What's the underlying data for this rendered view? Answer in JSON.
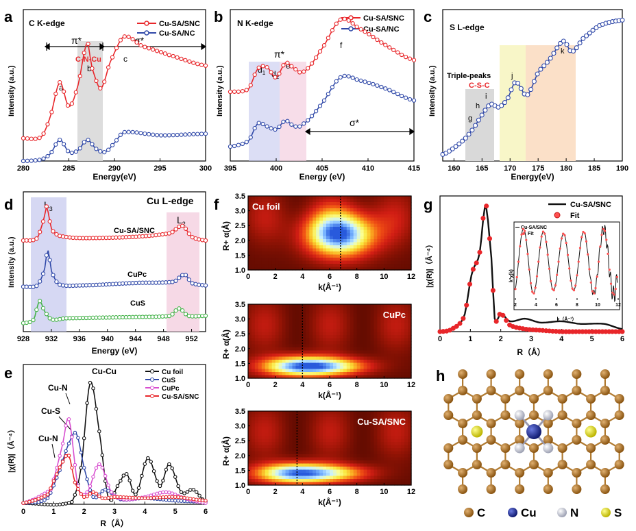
{
  "panels": {
    "a": {
      "letter": "a",
      "title": "C K-edge",
      "xlabel": "Energy(eV)",
      "ylabel": "Intensity (a.u.)",
      "xlim": [
        280,
        300
      ],
      "xticks": [
        280,
        285,
        290,
        295,
        300
      ],
      "legend": [
        "Cu-SA/SNC",
        "Cu-SA/NC"
      ],
      "pi_label": "π*",
      "sigma_label": "σ*",
      "cnc_label": "C-N-Cu",
      "peaks": [
        "a",
        "b",
        "c"
      ]
    },
    "b": {
      "letter": "b",
      "title": "N K-edge",
      "xlabel": "Energy (eV)",
      "ylabel": "Intensity (a.u.)",
      "xlim": [
        395,
        415
      ],
      "xticks": [
        395,
        400,
        405,
        410,
        415
      ],
      "legend": [
        "Cu-SA/SNC",
        "Cu-SA/NC"
      ],
      "pi_label": "π*",
      "sigma_label": "σ*",
      "peaks": {
        "d1": "d",
        "d1_sub": "1",
        "d2": "d",
        "d2_sub": "2",
        "e": "e",
        "f": "f"
      }
    },
    "c": {
      "letter": "c",
      "title": "S L-edge",
      "xlabel": "Energy(eV)",
      "ylabel": "Intensity (a.u.)",
      "xlim": [
        158,
        190
      ],
      "xticks": [
        160,
        165,
        170,
        175,
        180,
        185,
        190
      ],
      "triple_label": "Triple-peaks",
      "csc_label": "C-S-C",
      "peaks": [
        "g",
        "h",
        "i",
        "j",
        "k"
      ]
    },
    "d": {
      "letter": "d",
      "title": "Cu L-edge",
      "xlabel": "Energy (eV)",
      "ylabel": "Intensity (a.u.)",
      "xlim": [
        928,
        954
      ],
      "xticks": [
        928,
        932,
        936,
        940,
        944,
        948,
        952
      ],
      "l3": "L",
      "l3_sub": "3",
      "l2": "L",
      "l2_sub": "2",
      "series_labels": [
        "Cu-SA/SNC",
        "CuPc",
        "CuS"
      ]
    },
    "e": {
      "letter": "e",
      "xlabel": "R（Å）",
      "ylabel": "|χ(R)|（Å⁻⁴）",
      "xlim": [
        0,
        6
      ],
      "xticks": [
        0,
        1,
        2,
        3,
        4,
        5,
        6
      ],
      "legend": [
        "Cu foil",
        "CuS",
        "CuPc",
        "Cu-SA/SNC"
      ],
      "annotations": [
        "Cu-Cu",
        "Cu-N",
        "Cu-S",
        "Cu-N"
      ]
    },
    "f": {
      "letter": "f",
      "maps": [
        "Cu foil",
        "CuPc",
        "Cu-SA/SNC"
      ],
      "xlabel": "k(Å⁻¹)",
      "ylabel": "R+ α(Å)",
      "xticks": [
        0,
        2,
        4,
        6,
        8,
        10,
        12
      ],
      "yticks": [
        "1.0",
        "1.5",
        "2.0",
        "2.5",
        "3.0",
        "3.5"
      ]
    },
    "g": {
      "letter": "g",
      "xlabel": "R（Å）",
      "ylabel": "|χ(R)|（Å⁻⁴）",
      "xlim": [
        0,
        6
      ],
      "xticks": [
        0,
        1,
        2,
        3,
        4,
        5,
        6
      ],
      "legend": [
        "Cu-SA/SNC",
        "Fit"
      ],
      "inset": {
        "legend": [
          "Cu-SA/SNC",
          "Fit"
        ],
        "xlabel": "k（Å⁻¹）",
        "ylabel": "k³χ(k)",
        "xticks": [
          2,
          4,
          6,
          8,
          10,
          12
        ]
      }
    },
    "h": {
      "letter": "h",
      "legend": [
        {
          "symbol": "C",
          "color": "#a0661a"
        },
        {
          "symbol": "Cu",
          "color": "#1f2d9a"
        },
        {
          "symbol": "N",
          "color": "#c9cbd6"
        },
        {
          "symbol": "S",
          "color": "#e3e01a"
        }
      ]
    }
  },
  "colors": {
    "red": "#e8262a",
    "blue": "#2f48a8",
    "green": "#45b34a",
    "magenta": "#d84fd0",
    "black": "#111111"
  },
  "chart_data": [
    {
      "panel": "a",
      "type": "line",
      "title": "C K-edge",
      "xlabel": "Energy(eV)",
      "ylabel": "Intensity (a.u.)",
      "xlim": [
        280,
        300
      ],
      "series": [
        {
          "name": "Cu-SA/SNC",
          "x": [
            280,
            282,
            283,
            284,
            285,
            286,
            287,
            287.5,
            288.5,
            289.5,
            291,
            293,
            296,
            300
          ],
          "values": [
            0.15,
            0.16,
            0.3,
            0.52,
            0.36,
            0.5,
            0.78,
            0.62,
            0.48,
            0.65,
            0.82,
            0.76,
            0.7,
            0.63
          ]
        },
        {
          "name": "Cu-SA/NC",
          "x": [
            280,
            282,
            283,
            284,
            285,
            286,
            287,
            288,
            289,
            290,
            291,
            295,
            300
          ],
          "values": [
            0.0,
            0.01,
            0.05,
            0.14,
            0.06,
            0.07,
            0.14,
            0.08,
            0.06,
            0.12,
            0.19,
            0.17,
            0.18
          ]
        }
      ]
    },
    {
      "panel": "b",
      "type": "line",
      "title": "N K-edge",
      "xlabel": "Energy (eV)",
      "ylabel": "Intensity (a.u.)",
      "xlim": [
        395,
        415
      ],
      "series": [
        {
          "name": "Cu-SA/SNC",
          "x": [
            395,
            397,
            398,
            399,
            400,
            401,
            402,
            403,
            405,
            407,
            409,
            412,
            415
          ],
          "values": [
            0.48,
            0.5,
            0.64,
            0.65,
            0.58,
            0.68,
            0.64,
            0.62,
            0.78,
            0.98,
            0.92,
            0.8,
            0.7
          ]
        },
        {
          "name": "Cu-SA/NC",
          "x": [
            395,
            397,
            398,
            399,
            400,
            401,
            402,
            403,
            405,
            407,
            409,
            412,
            415
          ],
          "values": [
            0.1,
            0.14,
            0.26,
            0.24,
            0.22,
            0.28,
            0.24,
            0.26,
            0.4,
            0.58,
            0.56,
            0.5,
            0.42
          ]
        }
      ]
    },
    {
      "panel": "c",
      "type": "line",
      "title": "S L-edge",
      "xlabel": "Energy(eV)",
      "ylabel": "Intensity (a.u.)",
      "xlim": [
        158,
        190
      ],
      "series": [
        {
          "name": "Cu-SA/SNC",
          "x": [
            158,
            160,
            162,
            163.5,
            165,
            166.5,
            168,
            169.5,
            171,
            173,
            175,
            177,
            179.5,
            181,
            183,
            186,
            190
          ],
          "values": [
            0.0,
            0.05,
            0.12,
            0.2,
            0.3,
            0.38,
            0.36,
            0.42,
            0.55,
            0.45,
            0.62,
            0.72,
            0.86,
            0.78,
            0.88,
            0.98,
            1.02
          ]
        }
      ]
    },
    {
      "panel": "d",
      "type": "line",
      "title": "Cu L-edge",
      "xlabel": "Energy (eV)",
      "ylabel": "Intensity (a.u.)",
      "xlim": [
        928,
        954
      ],
      "series": [
        {
          "name": "Cu-SA/SNC",
          "x": [
            928,
            930,
            931,
            931.3,
            932,
            933,
            936,
            944,
            949,
            950.7,
            952,
            954
          ],
          "values": [
            0.7,
            0.72,
            0.88,
            0.98,
            0.8,
            0.74,
            0.72,
            0.73,
            0.76,
            0.82,
            0.73,
            0.7
          ]
        },
        {
          "name": "CuPc",
          "x": [
            928,
            930,
            931,
            931.5,
            932,
            933,
            936,
            944,
            949.5,
            951,
            952,
            954
          ],
          "values": [
            0.32,
            0.33,
            0.45,
            0.62,
            0.45,
            0.34,
            0.33,
            0.35,
            0.36,
            0.42,
            0.35,
            0.33
          ]
        },
        {
          "name": "CuS",
          "x": [
            928,
            929.5,
            930.3,
            931,
            932,
            934,
            944,
            949,
            950.2,
            951.5,
            954
          ],
          "values": [
            0.02,
            0.05,
            0.2,
            0.12,
            0.05,
            0.06,
            0.07,
            0.08,
            0.14,
            0.08,
            0.08
          ]
        }
      ]
    },
    {
      "panel": "e",
      "type": "line",
      "xlabel": "R（Å）",
      "ylabel": "|χ(R)|（Å⁻⁴）",
      "xlim": [
        0,
        6
      ],
      "series": [
        {
          "name": "Cu foil",
          "x": [
            0,
            1.6,
            1.9,
            2.2,
            2.5,
            2.8,
            3.1,
            3.4,
            3.7,
            4.1,
            4.5,
            4.8,
            5.2,
            5.6,
            6
          ],
          "values": [
            0.01,
            0.02,
            0.3,
            1.0,
            0.6,
            0.05,
            0.15,
            0.25,
            0.08,
            0.38,
            0.15,
            0.33,
            0.1,
            0.12,
            0.02
          ]
        },
        {
          "name": "CuS",
          "x": [
            0,
            0.8,
            1.2,
            1.5,
            1.75,
            2.0,
            2.3,
            2.7,
            3.2,
            4,
            5,
            6
          ],
          "values": [
            0.01,
            0.05,
            0.28,
            0.5,
            0.58,
            0.3,
            0.06,
            0.12,
            0.04,
            0.05,
            0.03,
            0.02
          ]
        },
        {
          "name": "CuPc",
          "x": [
            0,
            0.9,
            1.1,
            1.3,
            1.5,
            1.8,
            2.1,
            2.5,
            2.9,
            3.3,
            4,
            4.7,
            5.3,
            6
          ],
          "values": [
            0.01,
            0.12,
            0.3,
            0.5,
            0.7,
            0.15,
            0.1,
            0.33,
            0.1,
            0.04,
            0.06,
            0.1,
            0.05,
            0.01
          ]
        },
        {
          "name": "Cu-SA/SNC",
          "x": [
            0,
            0.8,
            1.05,
            1.3,
            1.5,
            1.7,
            2.0,
            2.3,
            2.6,
            3,
            4,
            5,
            6
          ],
          "values": [
            0.01,
            0.08,
            0.22,
            0.35,
            0.4,
            0.18,
            0.06,
            0.1,
            0.05,
            0.06,
            0.05,
            0.06,
            0.03
          ]
        }
      ]
    },
    {
      "panel": "f",
      "type": "heatmap",
      "xlabel": "k(Å⁻¹)",
      "ylabel": "R+ α(Å)",
      "maps": [
        {
          "name": "Cu foil",
          "k_max": 6.8,
          "R_max": 2.2
        },
        {
          "name": "CuPc",
          "k_max": 4.0,
          "R_max": 1.4
        },
        {
          "name": "Cu-SA/SNC",
          "k_max": 3.6,
          "R_max": 1.4
        }
      ]
    },
    {
      "panel": "g",
      "type": "line",
      "xlabel": "R（Å）",
      "ylabel": "|χ(R)|（Å⁻⁴）",
      "xlim": [
        0,
        6
      ],
      "series": [
        {
          "name": "Cu-SA/SNC",
          "x": [
            0,
            0.4,
            0.8,
            1.05,
            1.3,
            1.5,
            1.7,
            1.8,
            2.0,
            2.3,
            2.8,
            3.3,
            4.0,
            4.6,
            5.4,
            6
          ],
          "values": [
            0.0,
            0.02,
            0.12,
            0.45,
            0.6,
            0.97,
            0.55,
            0.1,
            0.14,
            0.08,
            0.1,
            0.07,
            0.08,
            0.06,
            0.06,
            0.02
          ]
        },
        {
          "name": "Fit",
          "x": [
            0,
            0.4,
            0.8,
            1.05,
            1.3,
            1.5,
            1.7,
            1.8,
            2.0,
            2.3,
            2.8,
            3.3,
            4.0,
            4.6,
            5.4,
            6
          ],
          "values": [
            0.0,
            0.02,
            0.12,
            0.45,
            0.6,
            0.99,
            0.55,
            0.1,
            0.14,
            0.05,
            0.02,
            0.01,
            0.0,
            0.0,
            0.0,
            0.0
          ]
        }
      ]
    }
  ]
}
